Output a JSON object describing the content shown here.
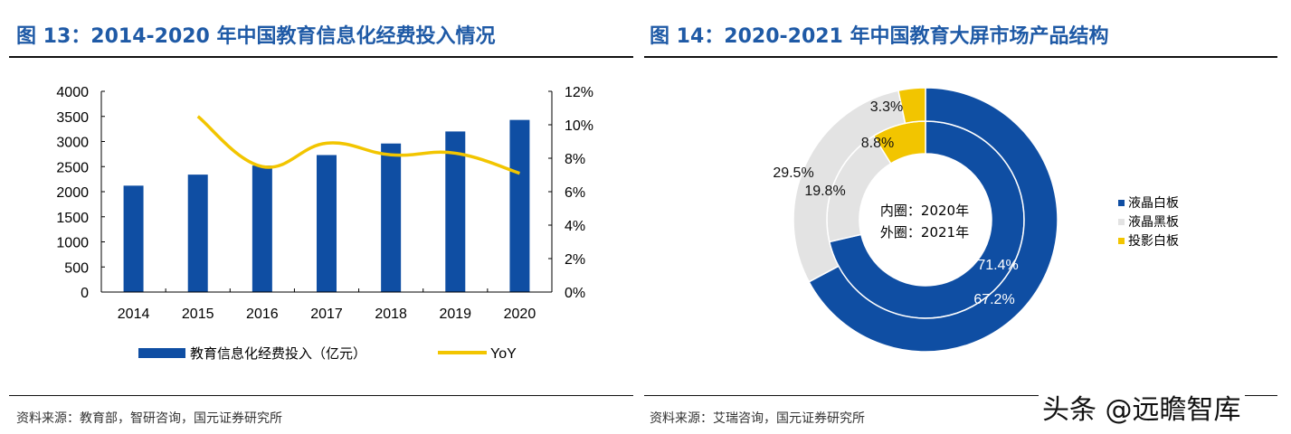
{
  "left": {
    "title": "图 13：2014-2020 年中国教育信息化经费投入情况",
    "source": "资料来源：教育部，智研咨询，国元证券研究所"
  },
  "right": {
    "title": "图 14：2020-2021 年中国教育大屏市场产品结构",
    "source": "资料来源：艾瑞咨询，国元证券研究所"
  },
  "watermark": "头条 @远瞻智库",
  "chart_data": [
    {
      "type": "bar+line",
      "categories": [
        "2014",
        "2015",
        "2016",
        "2017",
        "2018",
        "2019",
        "2020"
      ],
      "series": [
        {
          "name": "教育信息化经费投入（亿元）",
          "type": "bar",
          "axis": "left",
          "color": "#0f4ea3",
          "values": [
            2120,
            2340,
            2520,
            2730,
            2960,
            3200,
            3430
          ]
        },
        {
          "name": "YoY",
          "type": "line",
          "axis": "right",
          "color": "#f2c500",
          "values": [
            null,
            10.5,
            7.5,
            8.9,
            8.2,
            8.3,
            7.1
          ]
        }
      ],
      "y_left": {
        "range": [
          0,
          4000
        ],
        "ticks": [
          "0",
          "500",
          "1000",
          "1500",
          "2000",
          "2500",
          "3000",
          "3500",
          "4000"
        ]
      },
      "y_right": {
        "range": [
          0,
          12
        ],
        "ticks": [
          "0%",
          "2%",
          "4%",
          "6%",
          "8%",
          "10%",
          "12%"
        ]
      },
      "legend": "bottom",
      "grid": false
    },
    {
      "type": "pie",
      "subtype": "donut-nested",
      "center_label": [
        "内圈：2020年",
        "外圈：2021年"
      ],
      "categories": [
        "液晶白板",
        "液晶黑板",
        "投影白板"
      ],
      "colors": [
        "#0f4ea3",
        "#e3e3e3",
        "#f2c500"
      ],
      "rings": [
        {
          "name": "2020",
          "position": "inner",
          "values": [
            71.4,
            19.8,
            8.8
          ],
          "labels": [
            "71.4%",
            "19.8%",
            "8.8%"
          ]
        },
        {
          "name": "2021",
          "position": "outer",
          "values": [
            67.2,
            29.5,
            3.3
          ],
          "labels": [
            "67.2%",
            "29.5%",
            "3.3%"
          ]
        }
      ],
      "legend": "right"
    }
  ]
}
